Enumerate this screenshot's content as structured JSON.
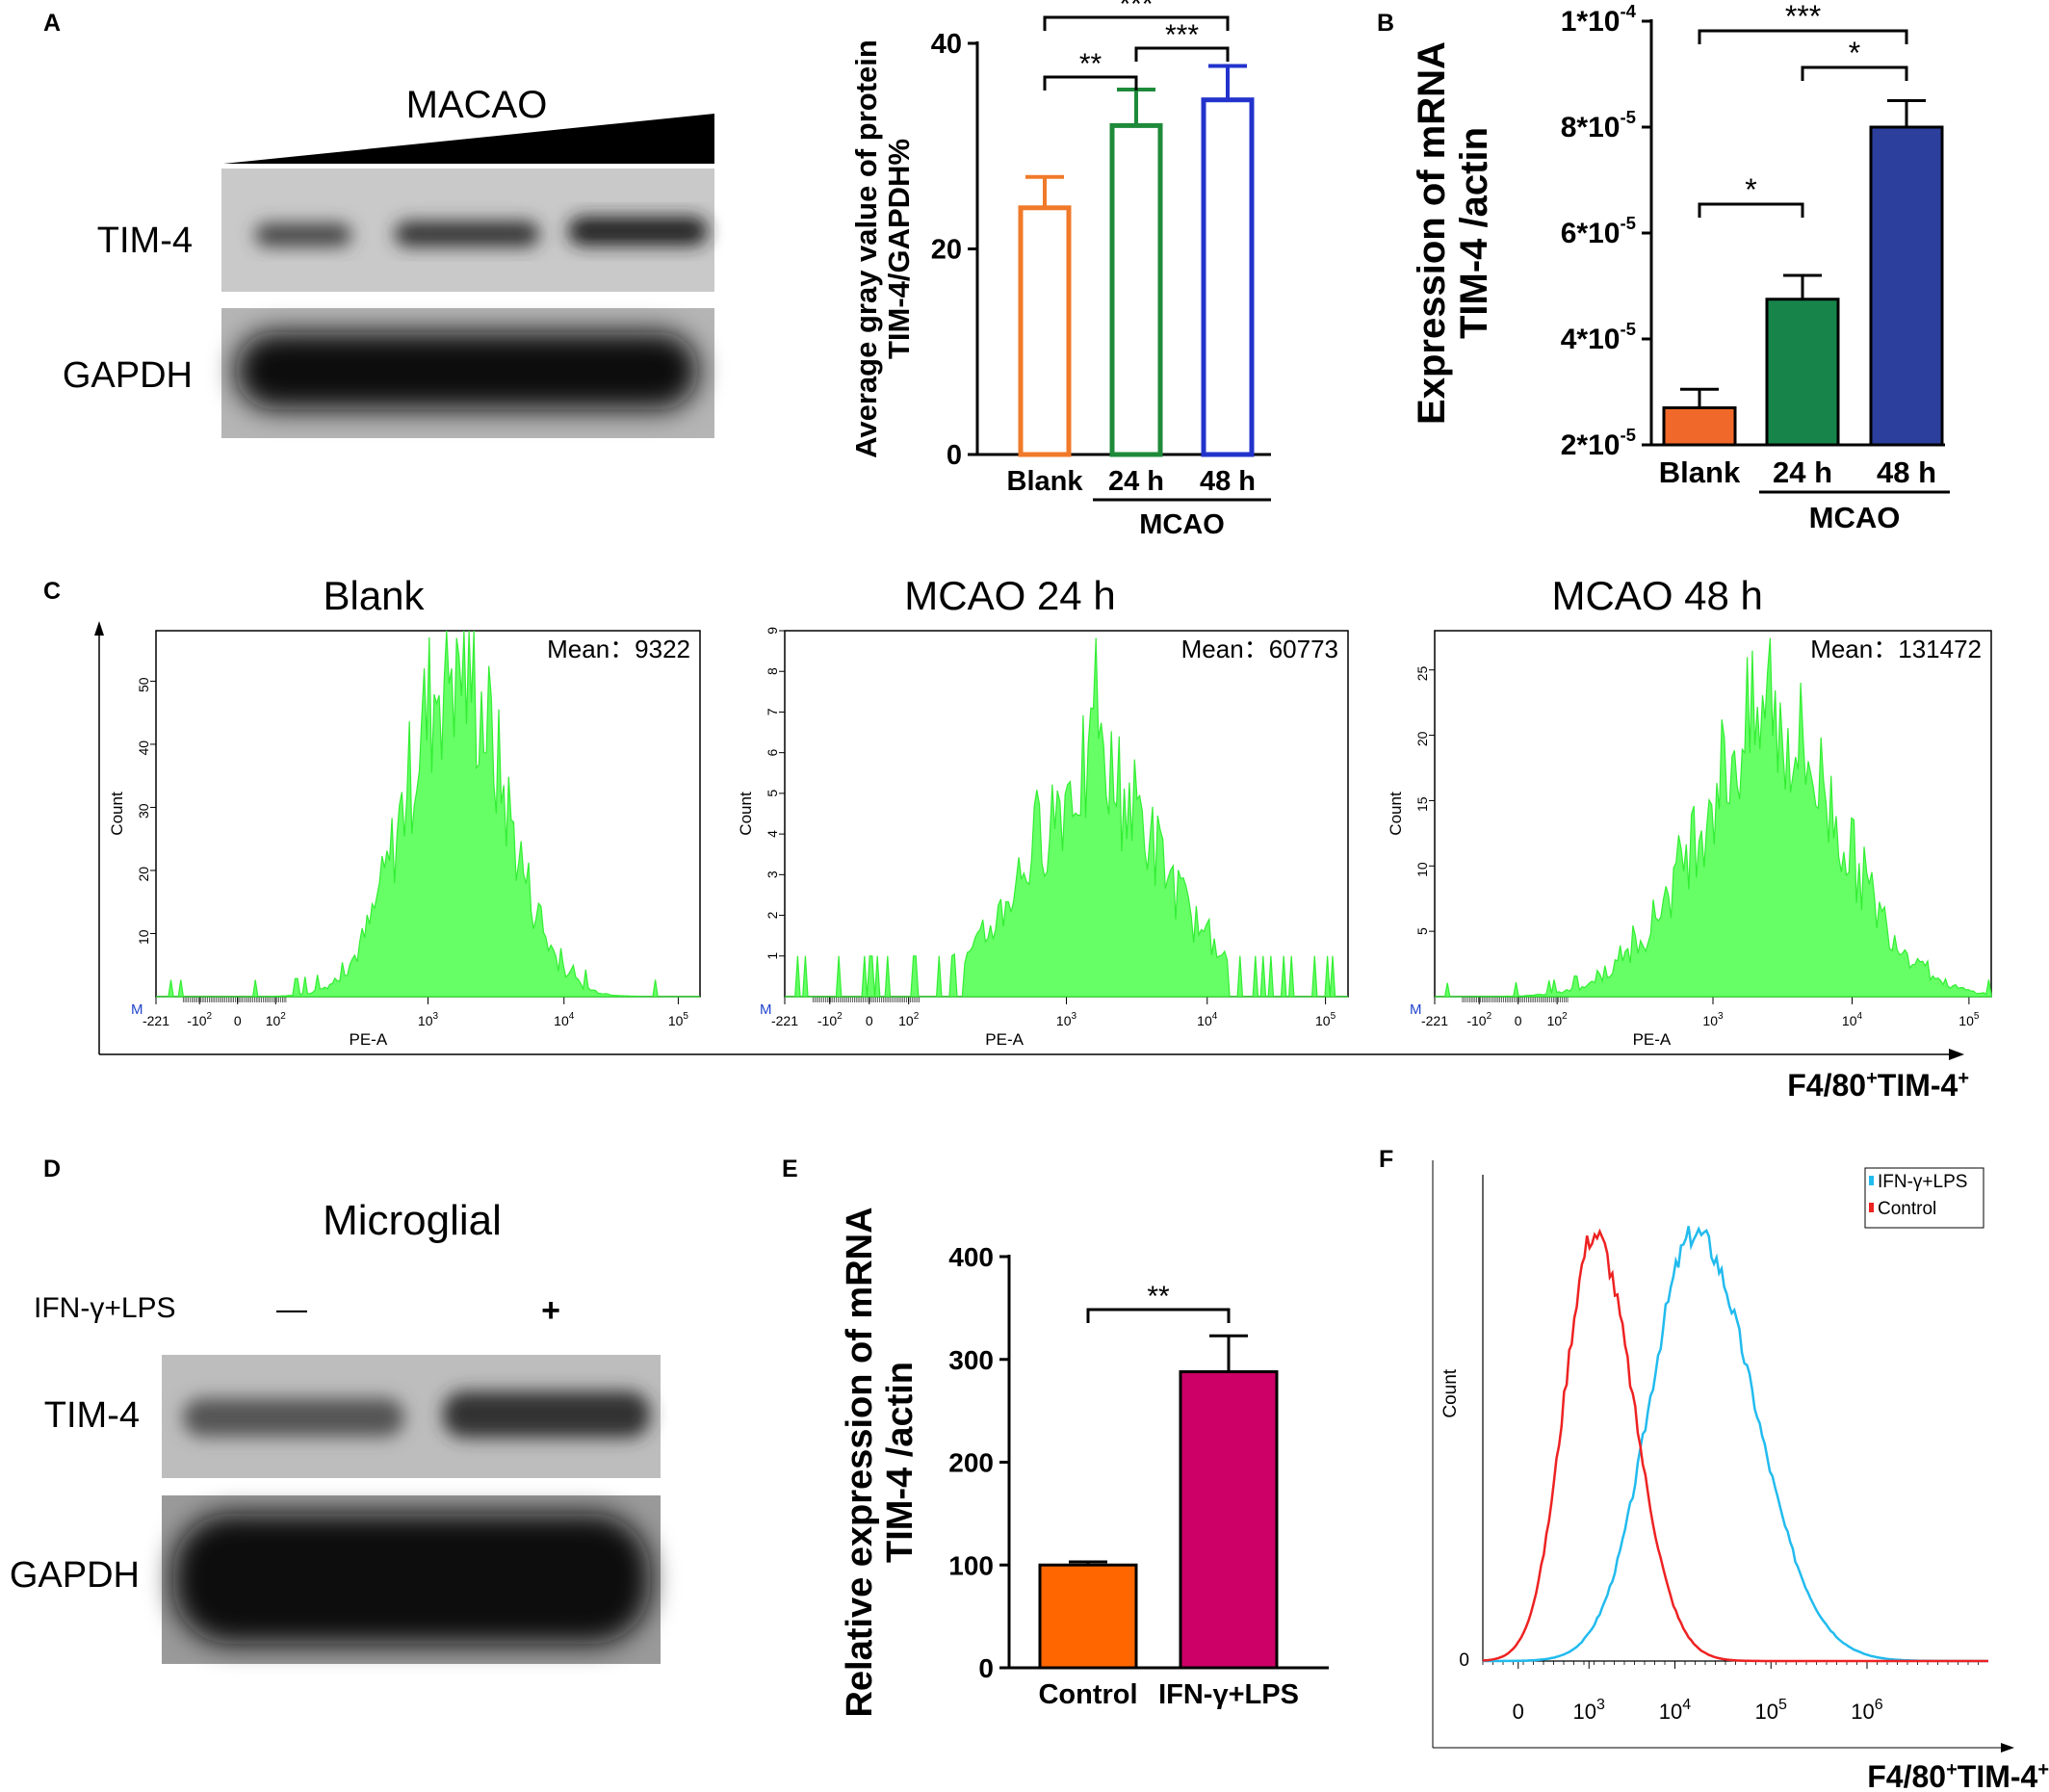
{
  "panels": {
    "A": "A",
    "B": "B",
    "C": "C",
    "D": "D",
    "E": "E",
    "F": "F"
  },
  "blotA": {
    "title": "MACAO",
    "row1": "TIM-4",
    "row2": "GAPDH",
    "bands_tim4": [
      0.35,
      0.55,
      0.85
    ]
  },
  "blotD": {
    "title": "Microglial",
    "treatment_label": "IFN-γ+LPS",
    "minus": "—",
    "plus": "+",
    "row1": "TIM-4",
    "row2": "GAPDH"
  },
  "colors": {
    "blank": "#F07A2A",
    "h24": "#1E8A3A",
    "h48": "#2233CC",
    "mrna_blank": "#F0692A",
    "mrna_24": "#17854A",
    "mrna_48": "#2D3F9C",
    "control": "#FF6600",
    "ifn": "#CC0066",
    "histo": "#66FF66",
    "cyan": "#22BBEE",
    "red": "#EE2222"
  },
  "chart_data": [
    {
      "id": "A-bar",
      "type": "bar",
      "categories": [
        "Blank",
        "24 h",
        "48 h"
      ],
      "values": [
        24,
        32,
        34.5
      ],
      "errors": [
        3,
        3.5,
        3.3
      ],
      "ylabel_line1": "Average gray value of protein",
      "ylabel_line2": "TIM-4/GAPDH%",
      "ylim": [
        0,
        40
      ],
      "yticks": [
        "0",
        "20",
        "40"
      ],
      "group_label": "MCAO",
      "significance": [
        {
          "from": "Blank",
          "to": "24 h",
          "label": "**"
        },
        {
          "from": "24 h",
          "to": "48 h",
          "label": "***"
        },
        {
          "from": "Blank",
          "to": "48 h",
          "label": "***"
        }
      ]
    },
    {
      "id": "B-bar",
      "type": "bar",
      "categories": [
        "Blank",
        "24 h",
        "48 h"
      ],
      "values": [
        2.7e-05,
        4.75e-05,
        8e-05
      ],
      "errors": [
        3.5e-06,
        4.5e-06,
        5e-06
      ],
      "ylabel_line1": "Expression of  mRNA",
      "ylabel_line2": "TIM-4 /actin",
      "ylim": [
        2e-05,
        0.0001
      ],
      "yticks": [
        {
          "base": "2*10",
          "exp": "-5"
        },
        {
          "base": "4*10",
          "exp": "-5"
        },
        {
          "base": "6*10",
          "exp": "-5"
        },
        {
          "base": "8*10",
          "exp": "-5"
        },
        {
          "base": "1*10",
          "exp": "-4"
        }
      ],
      "group_label": "MCAO",
      "significance": [
        {
          "from": "Blank",
          "to": "24 h",
          "label": "*"
        },
        {
          "from": "24 h",
          "to": "48 h",
          "label": "*"
        },
        {
          "from": "Blank",
          "to": "48 h",
          "label": "***"
        }
      ]
    },
    {
      "id": "C-histograms",
      "type": "area",
      "xlabel": "PE-A",
      "ylabel": "Count",
      "marker": "M",
      "xticks": [
        "-221",
        "-10",
        "0",
        "10",
        "10",
        "10",
        "10"
      ],
      "xtick_exps": [
        "",
        "2",
        "",
        "2",
        "3",
        "4",
        "5"
      ],
      "axis_label": "F4/80",
      "axis_sup1": "+",
      "axis_mid": "TIM-4",
      "axis_sup2": "+",
      "histograms": [
        {
          "title": "Blank",
          "mean_label": "Mean：",
          "mean": "9322",
          "yticks": [
            "10",
            "20",
            "30",
            "40",
            "50"
          ],
          "ymax": 58,
          "peak_x": 0.55,
          "spread": 0.09,
          "peak": 53
        },
        {
          "title": "MCAO  24 h",
          "mean_label": "Mean：",
          "mean": "60773",
          "yticks": [
            "1",
            "2",
            "3",
            "4",
            "5",
            "6",
            "7",
            "8",
            "9"
          ],
          "ymax": 9,
          "peak_x": 0.55,
          "spread": 0.12,
          "peak": 5.5
        },
        {
          "title": "MCAO  48 h",
          "mean_label": "Mean：",
          "mean": "131472",
          "yticks": [
            "5",
            "10",
            "15",
            "20",
            "25"
          ],
          "ymax": 28,
          "peak_x": 0.6,
          "spread": 0.13,
          "peak": 21
        }
      ]
    },
    {
      "id": "E-bar",
      "type": "bar",
      "categories": [
        "Control",
        "IFN-γ+LPS"
      ],
      "values": [
        100,
        288
      ],
      "errors": [
        3,
        35
      ],
      "ylabel_line1": "Relative expression of  mRNA",
      "ylabel_line2": "TIM-4 /actin",
      "ylim": [
        0,
        400
      ],
      "yticks": [
        "0",
        "100",
        "200",
        "300",
        "400"
      ],
      "significance": [
        {
          "from": "Control",
          "to": "IFN-γ+LPS",
          "label": "**"
        }
      ]
    },
    {
      "id": "F-overlay",
      "type": "line",
      "ylabel": "Count",
      "y0": "0",
      "xticks": [
        "0",
        "10",
        "10",
        "10",
        "10"
      ],
      "xtick_exps": [
        "",
        "3",
        "4",
        "5",
        "6"
      ],
      "series": [
        {
          "name": "IFN-γ+LPS",
          "color": "#22BBEE",
          "peak_x": 0.42,
          "spread": 0.09
        },
        {
          "name": "Control",
          "color": "#EE2222",
          "peak_x": 0.22,
          "spread": 0.06
        }
      ],
      "axis_label": "F4/80",
      "axis_sup1": "+",
      "axis_mid": "TIM-4",
      "axis_sup2": "+"
    }
  ]
}
